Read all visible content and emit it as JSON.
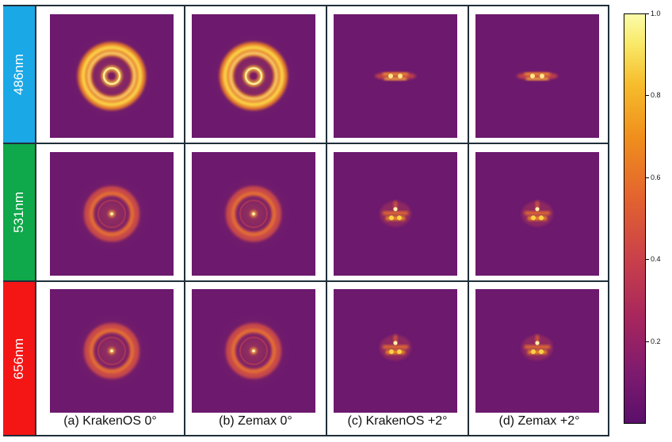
{
  "rows": [
    {
      "label": "486nm",
      "color": "#1aa8e6"
    },
    {
      "label": "531nm",
      "color": "#0fa84a"
    },
    {
      "label": "656nm",
      "color": "#f41515"
    }
  ],
  "columns": [
    {
      "caption": "(a) KrakenOS 0°"
    },
    {
      "caption": "(b) Zemax 0°"
    },
    {
      "caption": "(c) KrakenOS +2°"
    },
    {
      "caption": "(d) Zemax +2°"
    }
  ],
  "colorbar": {
    "colormap": "plasma",
    "min": 0,
    "max": 1.0,
    "ticks": [
      {
        "value": 1.0,
        "label": "1.0"
      },
      {
        "value": 0.8,
        "label": "0.8"
      },
      {
        "value": 0.6,
        "label": "0.6"
      },
      {
        "value": 0.4,
        "label": "0.4"
      },
      {
        "value": 0.2,
        "label": "0.2"
      }
    ]
  },
  "background_color": "#6c196e"
}
